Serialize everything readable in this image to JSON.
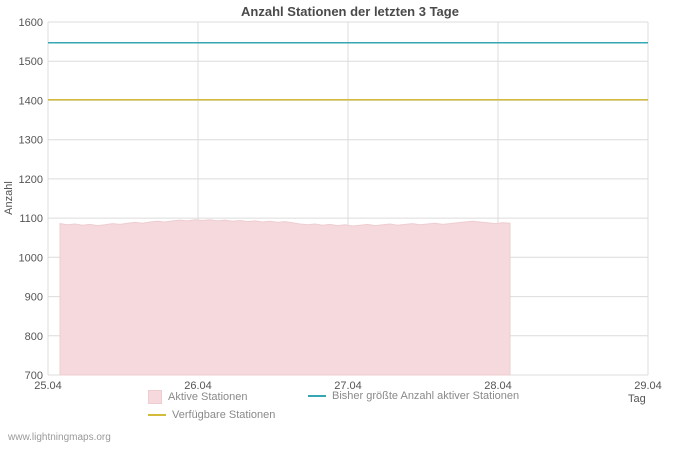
{
  "page": {
    "watermark": "www.lightningmaps.org"
  },
  "chart_data": {
    "type": "area",
    "title": "Anzahl Stationen der letzten 3 Tage",
    "xlabel": "Tag",
    "ylabel": "Anzahl",
    "ylim": [
      700,
      1600
    ],
    "y_ticks": [
      700,
      800,
      900,
      1000,
      1100,
      1200,
      1300,
      1400,
      1500,
      1600
    ],
    "x_ticks": [
      "25.04",
      "26.04",
      "27.04",
      "28.04",
      "29.04"
    ],
    "grid": true,
    "legend_position": "bottom",
    "series": [
      {
        "name": "Aktive Stationen",
        "type": "area",
        "color": "#f5d9dc",
        "stroke": "#eecdd1",
        "x": [
          0.08,
          0.13,
          0.18,
          0.23,
          0.28,
          0.33,
          0.38,
          0.43,
          0.48,
          0.53,
          0.58,
          0.63,
          0.68,
          0.73,
          0.78,
          0.83,
          0.88,
          0.93,
          0.98,
          1.03,
          1.08,
          1.13,
          1.18,
          1.23,
          1.28,
          1.33,
          1.38,
          1.43,
          1.48,
          1.53,
          1.58,
          1.63,
          1.68,
          1.73,
          1.78,
          1.83,
          1.88,
          1.93,
          1.98,
          2.03,
          2.08,
          2.13,
          2.18,
          2.23,
          2.28,
          2.33,
          2.38,
          2.43,
          2.48,
          2.53,
          2.58,
          2.63,
          2.68,
          2.73,
          2.78,
          2.83,
          2.88,
          2.93,
          2.98,
          3.03,
          3.08
        ],
        "values": [
          1086,
          1083,
          1085,
          1082,
          1084,
          1081,
          1083,
          1086,
          1084,
          1087,
          1089,
          1087,
          1090,
          1092,
          1090,
          1093,
          1095,
          1093,
          1096,
          1094,
          1096,
          1093,
          1095,
          1092,
          1094,
          1091,
          1093,
          1090,
          1092,
          1089,
          1091,
          1088,
          1085,
          1083,
          1085,
          1082,
          1084,
          1081,
          1083,
          1080,
          1082,
          1084,
          1081,
          1083,
          1085,
          1082,
          1084,
          1086,
          1083,
          1085,
          1087,
          1084,
          1086,
          1088,
          1090,
          1092,
          1090,
          1088,
          1086,
          1088,
          1087
        ]
      },
      {
        "name": "Bisher größte Anzahl aktiver Stationen",
        "type": "hline",
        "color": "#35a7b2",
        "value": 1547
      },
      {
        "name": "Verfügbare Stationen",
        "type": "hline",
        "color": "#d2bb3a",
        "value": 1402
      }
    ]
  }
}
